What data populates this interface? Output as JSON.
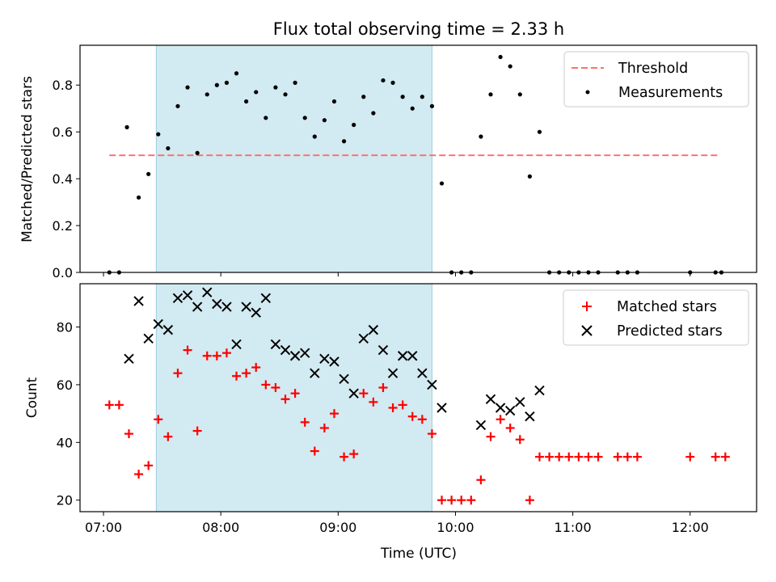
{
  "chart_data": [
    {
      "type": "scatter",
      "title": "Flux total observing time = 2.33 h",
      "xlabel": "",
      "ylabel": "Matched/Predicted stars",
      "ylim": [
        0,
        0.97
      ],
      "xlim": [
        "06:48",
        "12:34"
      ],
      "yticks": [
        0.0,
        0.2,
        0.4,
        0.6,
        0.8
      ],
      "ytick_labels": [
        "0.0",
        "0.2",
        "0.4",
        "0.6",
        "0.8"
      ],
      "legend_position": "top-right",
      "shaded_span": {
        "x0": "07:27",
        "x1": "09:48",
        "color": "#add8e6"
      },
      "series": [
        {
          "name": "Threshold",
          "kind": "dashed-line",
          "color": "#ff7070",
          "x": [
            "07:03",
            "12:15"
          ],
          "y": [
            0.5,
            0.5
          ]
        },
        {
          "name": "Measurements",
          "kind": "dots",
          "color": "#000000",
          "x": [
            "07:03",
            "07:08",
            "07:12",
            "07:18",
            "07:23",
            "07:28",
            "07:33",
            "07:38",
            "07:43",
            "07:48",
            "07:53",
            "07:58",
            "08:03",
            "08:08",
            "08:13",
            "08:18",
            "08:23",
            "08:28",
            "08:33",
            "08:38",
            "08:43",
            "08:48",
            "08:53",
            "08:58",
            "09:03",
            "09:08",
            "09:13",
            "09:18",
            "09:23",
            "09:28",
            "09:33",
            "09:38",
            "09:43",
            "09:48",
            "09:53",
            "09:58",
            "10:03",
            "10:08",
            "10:13",
            "10:18",
            "10:23",
            "10:28",
            "10:33",
            "10:38",
            "10:43",
            "10:48",
            "10:53",
            "10:58",
            "11:03",
            "11:08",
            "11:13",
            "11:23",
            "11:28",
            "11:33",
            "12:00",
            "12:13",
            "12:16"
          ],
          "y": [
            0,
            0,
            0.62,
            0.32,
            0.42,
            0.59,
            0.53,
            0.71,
            0.79,
            0.51,
            0.76,
            0.8,
            0.81,
            0.85,
            0.73,
            0.77,
            0.66,
            0.79,
            0.76,
            0.81,
            0.66,
            0.58,
            0.65,
            0.73,
            0.56,
            0.63,
            0.75,
            0.68,
            0.82,
            0.81,
            0.75,
            0.7,
            0.75,
            0.71,
            0.38,
            0,
            0,
            0,
            0.58,
            0.76,
            0.92,
            0.88,
            0.76,
            0.41,
            0.6,
            0,
            0,
            0,
            0,
            0,
            0,
            0,
            0,
            0,
            0,
            0,
            0
          ]
        }
      ]
    },
    {
      "type": "scatter",
      "title": "",
      "xlabel": "Time (UTC)",
      "ylabel": "Count",
      "ylim": [
        16,
        95
      ],
      "xlim": [
        "06:48",
        "12:34"
      ],
      "yticks": [
        20,
        40,
        60,
        80
      ],
      "ytick_labels": [
        "20",
        "40",
        "60",
        "80"
      ],
      "xticks": [
        "07:00",
        "08:00",
        "09:00",
        "10:00",
        "11:00",
        "12:00"
      ],
      "legend_position": "top-right",
      "shaded_span": {
        "x0": "07:27",
        "x1": "09:48",
        "color": "#add8e6"
      },
      "series": [
        {
          "name": "Matched stars",
          "kind": "plus",
          "color": "#ff0000",
          "x": [
            "07:03",
            "07:08",
            "07:13",
            "07:18",
            "07:23",
            "07:28",
            "07:33",
            "07:38",
            "07:43",
            "07:48",
            "07:53",
            "07:58",
            "08:03",
            "08:08",
            "08:13",
            "08:18",
            "08:23",
            "08:28",
            "08:33",
            "08:38",
            "08:43",
            "08:48",
            "08:53",
            "08:58",
            "09:03",
            "09:08",
            "09:13",
            "09:18",
            "09:23",
            "09:28",
            "09:33",
            "09:38",
            "09:43",
            "09:48",
            "09:53",
            "09:58",
            "10:03",
            "10:08",
            "10:13",
            "10:18",
            "10:23",
            "10:28",
            "10:33",
            "10:38",
            "10:43",
            "10:48",
            "10:53",
            "10:58",
            "11:03",
            "11:08",
            "11:13",
            "11:23",
            "11:28",
            "11:33",
            "12:00",
            "12:13",
            "12:18"
          ],
          "y": [
            53,
            53,
            43,
            29,
            32,
            48,
            42,
            64,
            72,
            44,
            70,
            70,
            71,
            63,
            64,
            66,
            60,
            59,
            55,
            57,
            47,
            37,
            45,
            50,
            35,
            36,
            57,
            54,
            59,
            52,
            53,
            49,
            48,
            43,
            20,
            20,
            20,
            20,
            27,
            42,
            48,
            45,
            41,
            20,
            35,
            35,
            35,
            35,
            35,
            35,
            35,
            35,
            35,
            35,
            35,
            35,
            35
          ]
        },
        {
          "name": "Predicted stars",
          "kind": "x",
          "color": "#000000",
          "x": [
            "07:13",
            "07:18",
            "07:23",
            "07:28",
            "07:33",
            "07:38",
            "07:43",
            "07:48",
            "07:53",
            "07:58",
            "08:03",
            "08:08",
            "08:13",
            "08:18",
            "08:23",
            "08:28",
            "08:33",
            "08:38",
            "08:43",
            "08:48",
            "08:53",
            "08:58",
            "09:03",
            "09:08",
            "09:13",
            "09:18",
            "09:23",
            "09:28",
            "09:33",
            "09:38",
            "09:43",
            "09:48",
            "09:53",
            "10:13",
            "10:18",
            "10:23",
            "10:28",
            "10:33",
            "10:38",
            "10:43"
          ],
          "y": [
            69,
            89,
            76,
            81,
            79,
            90,
            91,
            87,
            92,
            88,
            87,
            74,
            87,
            85,
            90,
            74,
            72,
            70,
            71,
            64,
            69,
            68,
            62,
            57,
            76,
            79,
            72,
            64,
            70,
            70,
            64,
            60,
            52,
            46,
            55,
            52,
            51,
            54,
            49,
            58
          ]
        }
      ]
    }
  ]
}
